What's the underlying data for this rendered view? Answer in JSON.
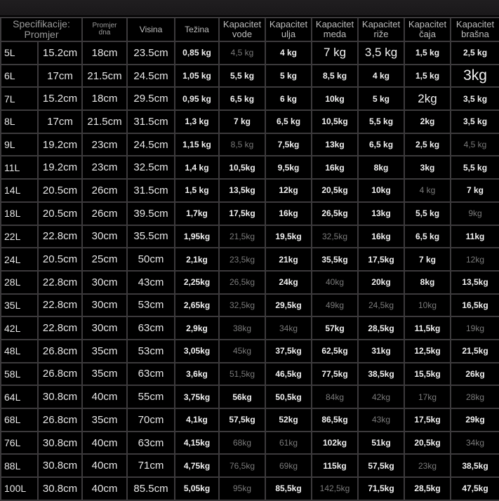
{
  "headers": [
    [
      "Specifikacije:",
      "Promjer"
    ],
    [
      "Promjer",
      "dna"
    ],
    [
      "Visina"
    ],
    [
      "Težina"
    ],
    [
      "Kapacitet",
      "vode"
    ],
    [
      "Kapacitet",
      "ulja"
    ],
    [
      "Kapacitet",
      "meda"
    ],
    [
      "Kapacitet",
      "riže"
    ],
    [
      "Kapacitet",
      "čaja"
    ],
    [
      "Kapacitet",
      "brašna"
    ]
  ],
  "rows": [
    [
      "5L",
      "15.2cm",
      "18cm",
      "23.5cm",
      "0,85 kg",
      "4,5 kg",
      "4 kg",
      "7 kg",
      "3,5 kg",
      "1,5 kg",
      "2,5 kg"
    ],
    [
      "6L",
      "17cm",
      "21.5cm",
      "24.5cm",
      "1,05 kg",
      "5,5 kg",
      "5 kg",
      "8,5 kg",
      "4 kg",
      "1,5 kg",
      "3kg"
    ],
    [
      "7L",
      "15.2cm",
      "18cm",
      "29.5cm",
      "0,95 kg",
      "6,5 kg",
      "6 kg",
      "10kg",
      "5 kg",
      "2kg",
      "3,5 kg"
    ],
    [
      "8L",
      "17cm",
      "21.5cm",
      "31.5cm",
      "1,3 kg",
      "7 kg",
      "6,5 kg",
      "10,5kg",
      "5,5 kg",
      "2kg",
      "3,5 kg"
    ],
    [
      "9L",
      "19.2cm",
      "23cm",
      "24.5cm",
      "1,15 kg",
      "8,5 kg",
      "7,5kg",
      "13kg",
      "6,5 kg",
      "2,5 kg",
      "4,5 kg"
    ],
    [
      "11L",
      "19.2cm",
      "23cm",
      "32.5cm",
      "1,4 kg",
      "10,5kg",
      "9,5kg",
      "16kg",
      "8kg",
      "3kg",
      "5,5 kg"
    ],
    [
      "14L",
      "20.5cm",
      "26cm",
      "31.5cm",
      "1,5 kg",
      "13,5kg",
      "12kg",
      "20,5kg",
      "10kg",
      "4 kg",
      "7 kg"
    ],
    [
      "18L",
      "20.5cm",
      "26cm",
      "39.5cm",
      "1,7kg",
      "17,5kg",
      "16kg",
      "26,5kg",
      "13kg",
      "5,5 kg",
      "9kg"
    ],
    [
      "22L",
      "22.8cm",
      "30cm",
      "35.5cm",
      "1,95kg",
      "21,5kg",
      "19,5kg",
      "32,5kg",
      "16kg",
      "6,5 kg",
      "11kg"
    ],
    [
      "24L",
      "20.5cm",
      "25cm",
      "50cm",
      "2,1kg",
      "23,5kg",
      "21kg",
      "35,5kg",
      "17,5kg",
      "7 kg",
      "12kg"
    ],
    [
      "28L",
      "22.8cm",
      "30cm",
      "43cm",
      "2,25kg",
      "26,5kg",
      "24kg",
      "40kg",
      "20kg",
      "8kg",
      "13,5kg"
    ],
    [
      "35L",
      "22.8cm",
      "30cm",
      "53cm",
      "2,65kg",
      "32,5kg",
      "29,5kg",
      "49kg",
      "24,5kg",
      "10kg",
      "16,5kg"
    ],
    [
      "42L",
      "22.8cm",
      "30cm",
      "63cm",
      "2,9kg",
      "38kg",
      "34kg",
      "57kg",
      "28,5kg",
      "11,5kg",
      "19kg"
    ],
    [
      "48L",
      "26.8cm",
      "35cm",
      "53cm",
      "3,05kg",
      "45kg",
      "37,5kg",
      "62,5kg",
      "31kg",
      "12,5kg",
      "21,5kg"
    ],
    [
      "58L",
      "26.8cm",
      "35cm",
      "63cm",
      "3,6kg",
      "51,5kg",
      "46,5kg",
      "77,5kg",
      "38,5kg",
      "15,5kg",
      "26kg"
    ],
    [
      "64L",
      "30.8cm",
      "40cm",
      "55cm",
      "3,75kg",
      "56kg",
      "50,5kg",
      "84kg",
      "42kg",
      "17kg",
      "28kg"
    ],
    [
      "68L",
      "26.8cm",
      "35cm",
      "70cm",
      "4,1kg",
      "57,5kg",
      "52kg",
      "86,5kg",
      "43kg",
      "17,5kg",
      "29kg"
    ],
    [
      "76L",
      "30.8cm",
      "40cm",
      "63cm",
      "4,15kg",
      "68kg",
      "61kg",
      "102kg",
      "51kg",
      "20,5kg",
      "34kg"
    ],
    [
      "88L",
      "30.8cm",
      "40cm",
      "71cm",
      "4,75kg",
      "76,5kg",
      "69kg",
      "115kg",
      "57,5kg",
      "23kg",
      "38,5kg"
    ],
    [
      "100L",
      "30.8cm",
      "40cm",
      "85.5cm",
      "5,05kg",
      "95kg",
      "85,5kg",
      "142,5kg",
      "71,5kg",
      "28,5kg",
      "47,5kg"
    ]
  ],
  "dim_cells": [
    "0-5",
    "4-5",
    "5-4",
    "6-4",
    "6-9",
    "4-10",
    "9-10",
    "10-5",
    "10-7",
    "11-5",
    "11-7",
    "11-8",
    "11-9",
    "12-5",
    "12-6",
    "12-10",
    "13-5",
    "14-5",
    "15-7",
    "15-8",
    "15-9",
    "15-10",
    "16-8",
    "17-4",
    "17-5",
    "17-6",
    "17-10",
    "18-5",
    "18-6",
    "18-9",
    "19-5",
    "19-7",
    "7-10",
    "8-5",
    "8-7",
    "9-5",
    "10-3"
  ],
  "big_cells": [
    "0-7",
    "0-8",
    "2-9"
  ],
  "huge_cells": [
    "1-10"
  ]
}
